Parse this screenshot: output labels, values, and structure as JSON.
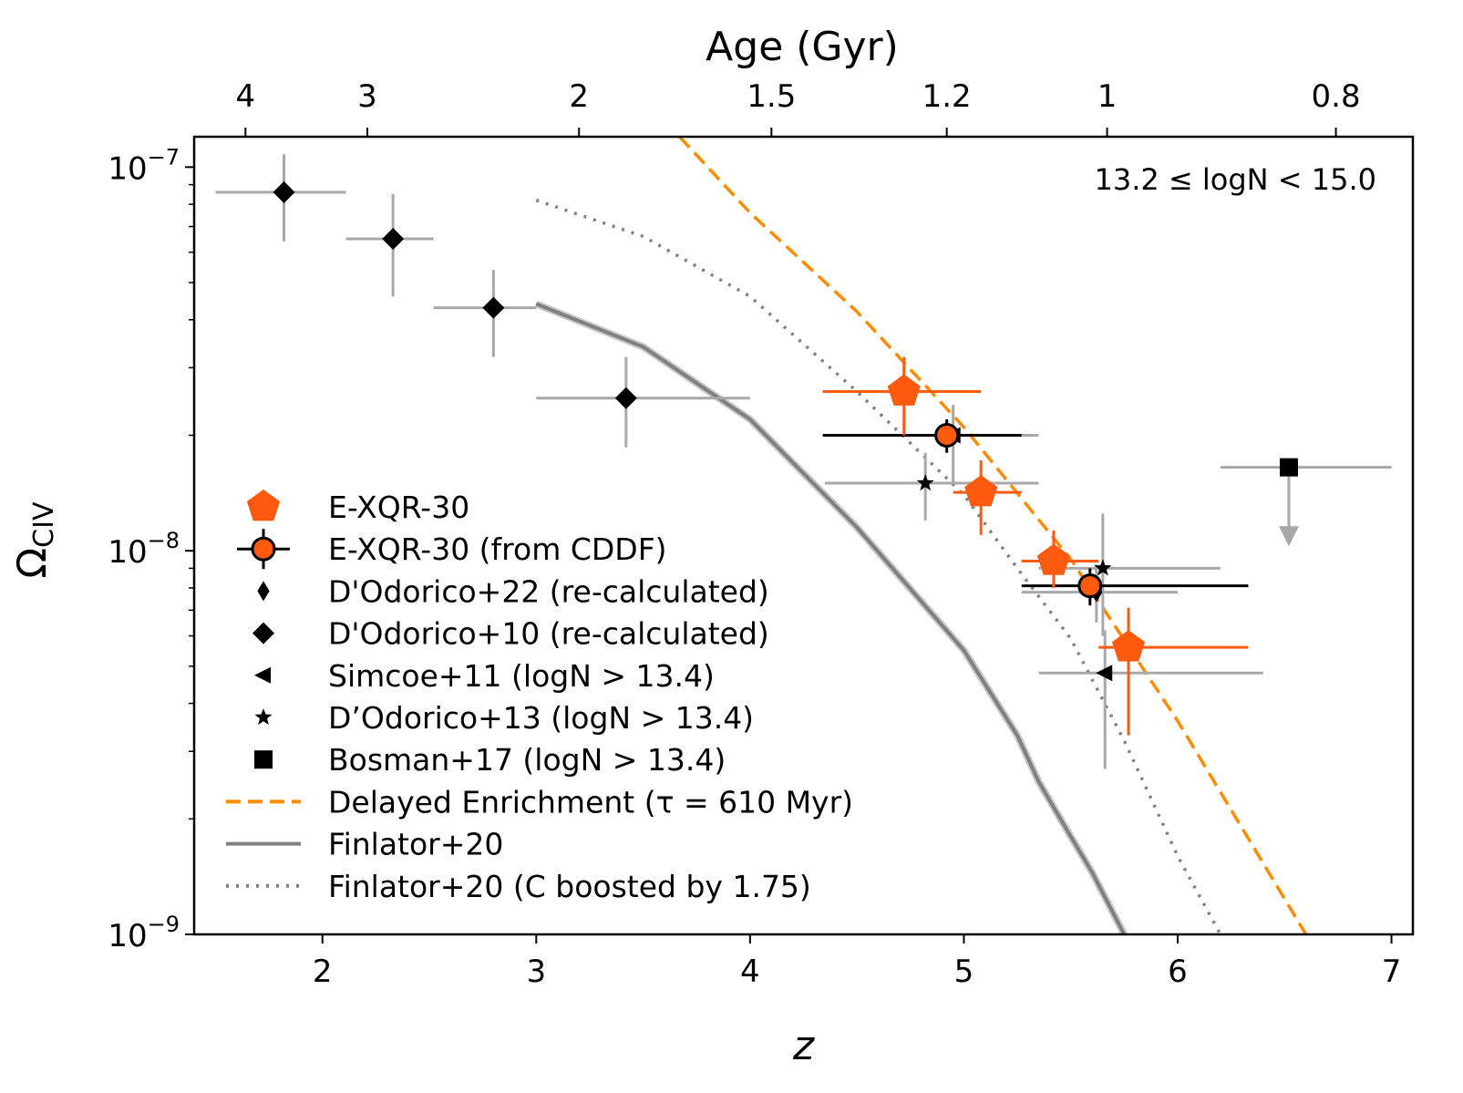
{
  "chart_data": {
    "type": "scatter",
    "xlabel": "z",
    "ylabel": "Ω",
    "ylabel_sub": "CIV",
    "top_xlabel": "Age (Gyr)",
    "xlim": [
      1.4,
      7.1
    ],
    "ylim": [
      1e-09,
      1.2e-07
    ],
    "yscale": "log",
    "x_ticks": [
      {
        "value": 2,
        "label": "2"
      },
      {
        "value": 3,
        "label": "3"
      },
      {
        "value": 4,
        "label": "4"
      },
      {
        "value": 5,
        "label": "5"
      },
      {
        "value": 6,
        "label": "6"
      },
      {
        "value": 7,
        "label": "7"
      }
    ],
    "y_ticks": [
      {
        "value": 1e-07,
        "base": "10",
        "exp": "−7"
      },
      {
        "value": 1e-08,
        "base": "10",
        "exp": "−8"
      },
      {
        "value": 1e-09,
        "base": "10",
        "exp": "−9"
      }
    ],
    "top_ticks": [
      {
        "z": 1.64,
        "label": "4"
      },
      {
        "z": 2.21,
        "label": "3"
      },
      {
        "z": 3.2,
        "label": "2"
      },
      {
        "z": 4.1,
        "label": "1.5"
      },
      {
        "z": 4.92,
        "label": "1.2"
      },
      {
        "z": 5.67,
        "label": "1"
      },
      {
        "z": 6.74,
        "label": "0.8"
      }
    ],
    "annotation": "13.2  ≤  logN < 15.0",
    "legend_position": "lower-left",
    "series": [
      {
        "name": "E-XQR-30",
        "marker": "pentagon",
        "color": "#ff5a0e",
        "points": [
          {
            "x": 4.72,
            "y": 2.6e-08,
            "xlo": 4.34,
            "xhi": 5.08,
            "ylo": 2e-08,
            "yhi": 3.2e-08
          },
          {
            "x": 5.08,
            "y": 1.42e-08,
            "xlo": 4.95,
            "xhi": 5.27,
            "ylo": 1.1e-08,
            "yhi": 1.72e-08
          },
          {
            "x": 5.42,
            "y": 9.4e-09,
            "xlo": 5.27,
            "xhi": 5.63,
            "ylo": 8e-09,
            "yhi": 1.13e-08
          },
          {
            "x": 5.77,
            "y": 5.6e-09,
            "xlo": 5.63,
            "xhi": 6.33,
            "ylo": 3.3e-09,
            "yhi": 7.1e-09
          }
        ]
      },
      {
        "name": "E-XQR-30 (from CDDF)",
        "marker": "circle",
        "color": "#ff5a0e",
        "edge": "#000000",
        "points": [
          {
            "x": 4.92,
            "y": 2e-08,
            "xlo": 4.34,
            "xhi": 5.27,
            "ylo": 1.8e-08,
            "yhi": 2.2e-08
          },
          {
            "x": 5.59,
            "y": 8.1e-09,
            "xlo": 5.27,
            "xhi": 6.33,
            "ylo": 7.2e-09,
            "yhi": 9e-09
          }
        ]
      },
      {
        "name": "D'Odorico+22 (re-calculated)",
        "marker": "thin-diamond",
        "color": "#000000",
        "points": [
          {
            "x": 5.62,
            "y": 7.8e-09,
            "xlo": 5.27,
            "xhi": 6.0,
            "ylo": 6.5e-09,
            "yhi": 9.2e-09
          }
        ]
      },
      {
        "name": "D'Odorico+10 (re-calculated)",
        "marker": "diamond",
        "color": "#000000",
        "points": [
          {
            "x": 1.82,
            "y": 8.6e-08,
            "xlo": 1.5,
            "xhi": 2.11,
            "ylo": 6.4e-08,
            "yhi": 1.08e-07
          },
          {
            "x": 2.33,
            "y": 6.5e-08,
            "xlo": 2.11,
            "xhi": 2.52,
            "ylo": 4.6e-08,
            "yhi": 8.5e-08
          },
          {
            "x": 2.8,
            "y": 4.3e-08,
            "xlo": 2.52,
            "xhi": 3.0,
            "ylo": 3.2e-08,
            "yhi": 5.4e-08
          },
          {
            "x": 3.42,
            "y": 2.5e-08,
            "xlo": 3.0,
            "xhi": 4.0,
            "ylo": 1.86e-08,
            "yhi": 3.2e-08
          }
        ]
      },
      {
        "name": "Simcoe+11 (logN > 13.4)",
        "marker": "triangle-left",
        "color": "#000000",
        "points": [
          {
            "x": 4.95,
            "y": 2e-08,
            "xlo": 4.35,
            "xhi": 5.35,
            "ylo": 1.5e-08,
            "yhi": 2.4e-08
          },
          {
            "x": 5.66,
            "y": 4.8e-09,
            "xlo": 5.35,
            "xhi": 6.4,
            "ylo": 2.7e-09,
            "yhi": 6.2e-09
          }
        ]
      },
      {
        "name": "D’Odorico+13 (logN > 13.4)",
        "marker": "star",
        "color": "#000000",
        "points": [
          {
            "x": 4.82,
            "y": 1.5e-08,
            "xlo": 4.35,
            "xhi": 5.35,
            "ylo": 1.2e-08,
            "yhi": 1.8e-08
          },
          {
            "x": 5.65,
            "y": 9e-09,
            "xlo": 5.35,
            "xhi": 6.2,
            "ylo": 6e-09,
            "yhi": 1.25e-08
          }
        ]
      },
      {
        "name": "Bosman+17 (logN > 13.4)",
        "marker": "square",
        "color": "#000000",
        "upper_limit": true,
        "points": [
          {
            "x": 6.52,
            "y": 1.65e-08,
            "xlo": 6.2,
            "xhi": 7.0,
            "arrow_to": 1.05e-08
          }
        ]
      }
    ],
    "lines": [
      {
        "name": "Delayed Enrichment (τ = 610 Myr)",
        "style": "dashed",
        "color": "#ff8c00",
        "x": [
          3.67,
          4.0,
          4.5,
          5.0,
          5.5,
          6.0,
          6.6
        ],
        "y": [
          1.2e-07,
          7.6e-08,
          4.2e-08,
          2.1e-08,
          9.5e-09,
          3.6e-09,
          1e-09
        ]
      },
      {
        "name": "Finlator+20",
        "style": "solid",
        "color": "#808080",
        "x": [
          3.0,
          3.5,
          4.0,
          4.5,
          5.0,
          5.25,
          5.35,
          5.5,
          5.6,
          5.75
        ],
        "y": [
          4.4e-08,
          3.4e-08,
          2.2e-08,
          1.15e-08,
          5.5e-09,
          3.3e-09,
          2.5e-09,
          1.8e-09,
          1.45e-09,
          1e-09
        ]
      },
      {
        "name": "Finlator+20 (C boosted by 1.75)",
        "style": "dotted",
        "color": "#808080",
        "x": [
          3.0,
          3.5,
          4.0,
          4.5,
          5.0,
          5.25,
          5.5,
          5.75,
          6.0,
          6.2
        ],
        "y": [
          8.2e-08,
          6.6e-08,
          4.6e-08,
          2.6e-08,
          1.4e-08,
          9e-09,
          5.9e-09,
          3.2e-09,
          1.6e-09,
          1e-09
        ]
      }
    ]
  }
}
